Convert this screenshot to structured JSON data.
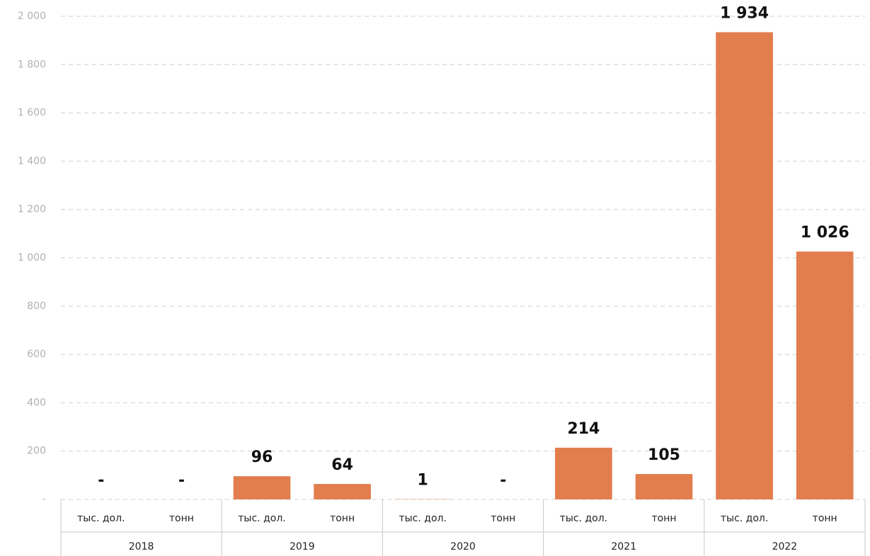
{
  "chart_data": {
    "type": "bar",
    "categories": [
      "тыс. дол.",
      "тонн",
      "тыс. дол.",
      "тонн",
      "тыс. дол.",
      "тонн",
      "тыс. дол.",
      "тонн",
      "тыс. дол.",
      "тонн"
    ],
    "groups": [
      "2018",
      "2019",
      "2020",
      "2021",
      "2022"
    ],
    "values": [
      0,
      0,
      96,
      64,
      1,
      0,
      214,
      105,
      1934,
      1026
    ],
    "value_labels": [
      "-",
      "-",
      "96",
      "64",
      "1",
      "-",
      "214",
      "105",
      "1 934",
      "1 026"
    ],
    "color": "#e27d4e",
    "ylim": [
      0,
      2000
    ],
    "yticks": [
      {
        "value": 0,
        "label": "-"
      },
      200,
      400,
      600,
      800,
      {
        "value": 1000,
        "label": "1 000"
      },
      {
        "value": 1200,
        "label": "1 200"
      },
      {
        "value": 1400,
        "label": "1 400"
      },
      {
        "value": 1600,
        "label": "1 600"
      },
      {
        "value": 1800,
        "label": "1 800"
      },
      {
        "value": 2000,
        "label": "2 000"
      }
    ],
    "grid": true
  }
}
